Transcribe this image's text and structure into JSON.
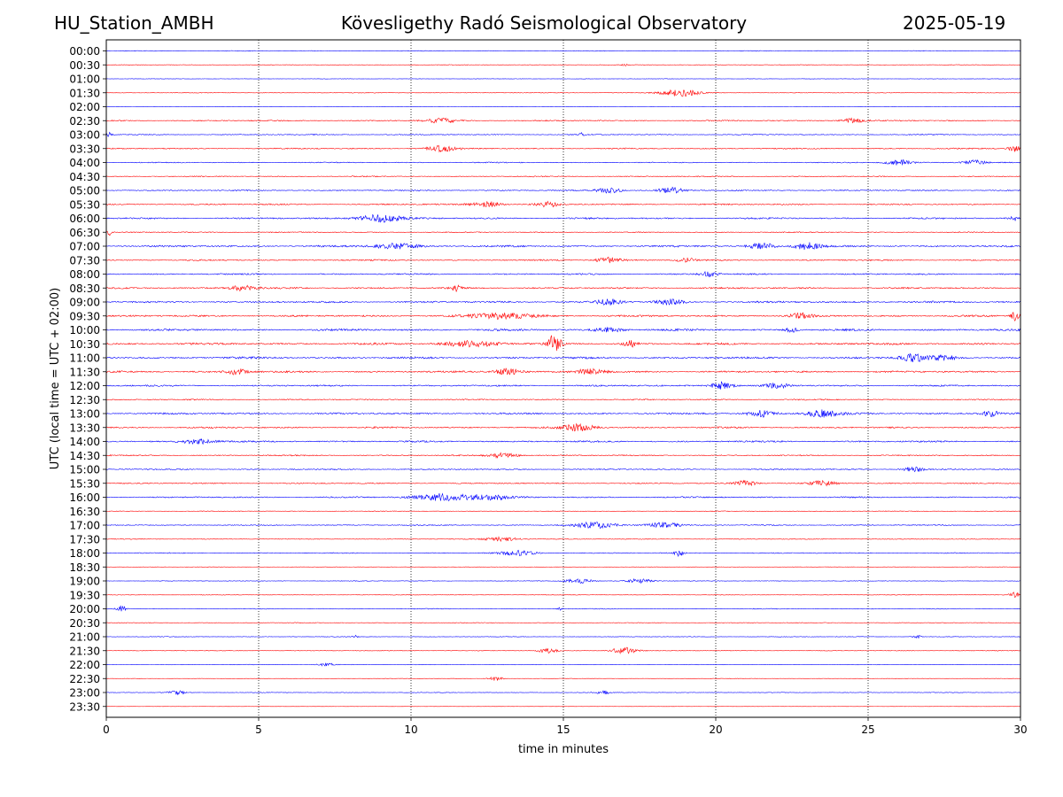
{
  "header": {
    "station": "HU_Station_AMBH",
    "title": "Kövesligethy Radó Seismological Observatory",
    "date": "2025-05-19"
  },
  "chart_data": {
    "type": "line",
    "title": "Kövesligethy Radó Seismological Observatory",
    "xlabel": "time in minutes",
    "ylabel": "UTC (local time = UTC + 02:00)",
    "xlim": [
      0,
      30
    ],
    "x_ticks": [
      0,
      5,
      10,
      15,
      20,
      25,
      30
    ],
    "x_gridlines": [
      5,
      10,
      15,
      20,
      25
    ],
    "grid": "vertical dotted",
    "row_labels": [
      "00:00",
      "00:30",
      "01:00",
      "01:30",
      "02:00",
      "02:30",
      "03:00",
      "03:30",
      "04:00",
      "04:30",
      "05:00",
      "05:30",
      "06:00",
      "06:30",
      "07:00",
      "07:30",
      "08:00",
      "08:30",
      "09:00",
      "09:30",
      "10:00",
      "10:30",
      "11:00",
      "11:30",
      "12:00",
      "12:30",
      "13:00",
      "13:30",
      "14:00",
      "14:30",
      "15:00",
      "15:30",
      "16:00",
      "16:30",
      "17:00",
      "17:30",
      "18:00",
      "18:30",
      "19:00",
      "19:30",
      "20:00",
      "20:30",
      "21:00",
      "21:30",
      "22:00",
      "22:30",
      "23:00",
      "23:30"
    ],
    "trace_colors": [
      "#0000ff",
      "#ff0000"
    ],
    "noise_level": [
      0.4,
      0.3,
      0.2,
      0.3,
      0.2,
      0.6,
      0.5,
      0.6,
      0.5,
      0.5,
      0.6,
      0.7,
      0.8,
      0.5,
      0.9,
      0.7,
      0.7,
      0.8,
      0.9,
      0.9,
      1.0,
      1.0,
      1.0,
      0.9,
      0.8,
      0.6,
      0.9,
      0.8,
      0.8,
      0.6,
      0.6,
      0.6,
      0.7,
      0.3,
      0.5,
      0.4,
      0.5,
      0.2,
      0.3,
      0.3,
      0.4,
      0.3,
      0.3,
      0.3,
      0.3,
      0.2,
      0.3,
      0.1
    ],
    "events": [
      {
        "row": 1,
        "t": 17.0,
        "amp": 2.5,
        "width": 0.1
      },
      {
        "row": 3,
        "t": 18.8,
        "amp": 4.5,
        "width": 0.9
      },
      {
        "row": 5,
        "t": 11.0,
        "amp": 3.0,
        "width": 0.7
      },
      {
        "row": 5,
        "t": 24.5,
        "amp": 3.0,
        "width": 0.5
      },
      {
        "row": 6,
        "t": 0.1,
        "amp": 3.0,
        "width": 0.1
      },
      {
        "row": 6,
        "t": 15.6,
        "amp": 2.0,
        "width": 0.1
      },
      {
        "row": 7,
        "t": 11.0,
        "amp": 3.5,
        "width": 0.7
      },
      {
        "row": 7,
        "t": 29.8,
        "amp": 4.0,
        "width": 0.3
      },
      {
        "row": 8,
        "t": 26.0,
        "amp": 3.5,
        "width": 0.6
      },
      {
        "row": 8,
        "t": 28.5,
        "amp": 3.0,
        "width": 0.5
      },
      {
        "row": 10,
        "t": 16.5,
        "amp": 3.5,
        "width": 0.6
      },
      {
        "row": 10,
        "t": 18.5,
        "amp": 3.5,
        "width": 0.6
      },
      {
        "row": 11,
        "t": 12.5,
        "amp": 3.5,
        "width": 0.7
      },
      {
        "row": 11,
        "t": 14.5,
        "amp": 3.0,
        "width": 0.5
      },
      {
        "row": 12,
        "t": 9.0,
        "amp": 5.0,
        "width": 1.0
      },
      {
        "row": 12,
        "t": 29.8,
        "amp": 4.5,
        "width": 0.2
      },
      {
        "row": 13,
        "t": 0.1,
        "amp": 4.0,
        "width": 0.1
      },
      {
        "row": 14,
        "t": 9.5,
        "amp": 3.5,
        "width": 1.0
      },
      {
        "row": 14,
        "t": 21.5,
        "amp": 4.0,
        "width": 0.6
      },
      {
        "row": 14,
        "t": 23.0,
        "amp": 4.5,
        "width": 0.6
      },
      {
        "row": 15,
        "t": 16.5,
        "amp": 3.5,
        "width": 0.6
      },
      {
        "row": 15,
        "t": 19.0,
        "amp": 3.0,
        "width": 0.4
      },
      {
        "row": 16,
        "t": 19.8,
        "amp": 3.5,
        "width": 0.4
      },
      {
        "row": 17,
        "t": 4.5,
        "amp": 3.0,
        "width": 0.7
      },
      {
        "row": 17,
        "t": 11.5,
        "amp": 4.0,
        "width": 0.2
      },
      {
        "row": 18,
        "t": 16.5,
        "amp": 3.5,
        "width": 0.6
      },
      {
        "row": 18,
        "t": 18.5,
        "amp": 3.5,
        "width": 0.6
      },
      {
        "row": 19,
        "t": 13.0,
        "amp": 3.5,
        "width": 1.5
      },
      {
        "row": 19,
        "t": 22.8,
        "amp": 3.0,
        "width": 0.5
      },
      {
        "row": 19,
        "t": 29.8,
        "amp": 6.0,
        "width": 0.2
      },
      {
        "row": 20,
        "t": 16.5,
        "amp": 3.0,
        "width": 0.6
      },
      {
        "row": 20,
        "t": 22.5,
        "amp": 3.0,
        "width": 0.3
      },
      {
        "row": 21,
        "t": 12.0,
        "amp": 4.0,
        "width": 1.2
      },
      {
        "row": 21,
        "t": 14.7,
        "amp": 11.0,
        "width": 0.3
      },
      {
        "row": 21,
        "t": 17.2,
        "amp": 4.0,
        "width": 0.3
      },
      {
        "row": 22,
        "t": 26.5,
        "amp": 4.5,
        "width": 0.6
      },
      {
        "row": 22,
        "t": 27.5,
        "amp": 3.0,
        "width": 0.6
      },
      {
        "row": 23,
        "t": 4.3,
        "amp": 3.5,
        "width": 0.5
      },
      {
        "row": 23,
        "t": 13.2,
        "amp": 4.0,
        "width": 0.6
      },
      {
        "row": 23,
        "t": 15.8,
        "amp": 3.5,
        "width": 0.7
      },
      {
        "row": 24,
        "t": 20.2,
        "amp": 5.0,
        "width": 0.5
      },
      {
        "row": 24,
        "t": 22.0,
        "amp": 3.0,
        "width": 0.5
      },
      {
        "row": 26,
        "t": 21.5,
        "amp": 4.0,
        "width": 0.6
      },
      {
        "row": 26,
        "t": 23.5,
        "amp": 4.5,
        "width": 0.8
      },
      {
        "row": 26,
        "t": 29.0,
        "amp": 3.5,
        "width": 0.4
      },
      {
        "row": 27,
        "t": 15.5,
        "amp": 4.0,
        "width": 0.8
      },
      {
        "row": 28,
        "t": 3.0,
        "amp": 3.0,
        "width": 0.8
      },
      {
        "row": 29,
        "t": 13.0,
        "amp": 3.0,
        "width": 0.7
      },
      {
        "row": 30,
        "t": 26.5,
        "amp": 3.0,
        "width": 0.5
      },
      {
        "row": 31,
        "t": 21.0,
        "amp": 4.0,
        "width": 0.5
      },
      {
        "row": 31,
        "t": 23.5,
        "amp": 3.0,
        "width": 0.6
      },
      {
        "row": 32,
        "t": 11.0,
        "amp": 4.5,
        "width": 1.2
      },
      {
        "row": 32,
        "t": 12.5,
        "amp": 3.5,
        "width": 1.0
      },
      {
        "row": 34,
        "t": 16.0,
        "amp": 3.5,
        "width": 1.0
      },
      {
        "row": 34,
        "t": 18.3,
        "amp": 3.5,
        "width": 0.8
      },
      {
        "row": 35,
        "t": 13.0,
        "amp": 2.5,
        "width": 0.8
      },
      {
        "row": 36,
        "t": 13.5,
        "amp": 3.0,
        "width": 0.8
      },
      {
        "row": 36,
        "t": 18.8,
        "amp": 4.5,
        "width": 0.2
      },
      {
        "row": 38,
        "t": 15.5,
        "amp": 3.0,
        "width": 0.6
      },
      {
        "row": 38,
        "t": 17.5,
        "amp": 3.0,
        "width": 0.6
      },
      {
        "row": 39,
        "t": 29.8,
        "amp": 3.0,
        "width": 0.3
      },
      {
        "row": 40,
        "t": 0.5,
        "amp": 4.0,
        "width": 0.2
      },
      {
        "row": 40,
        "t": 14.9,
        "amp": 2.5,
        "width": 0.1
      },
      {
        "row": 42,
        "t": 8.2,
        "amp": 2.5,
        "width": 0.1
      },
      {
        "row": 42,
        "t": 26.6,
        "amp": 2.5,
        "width": 0.2
      },
      {
        "row": 43,
        "t": 14.5,
        "amp": 3.0,
        "width": 0.4
      },
      {
        "row": 43,
        "t": 17.0,
        "amp": 4.0,
        "width": 0.6
      },
      {
        "row": 44,
        "t": 7.2,
        "amp": 2.0,
        "width": 0.4
      },
      {
        "row": 45,
        "t": 12.8,
        "amp": 3.0,
        "width": 0.3
      },
      {
        "row": 46,
        "t": 2.3,
        "amp": 2.5,
        "width": 0.4
      },
      {
        "row": 46,
        "t": 16.3,
        "amp": 2.5,
        "width": 0.3
      }
    ]
  }
}
